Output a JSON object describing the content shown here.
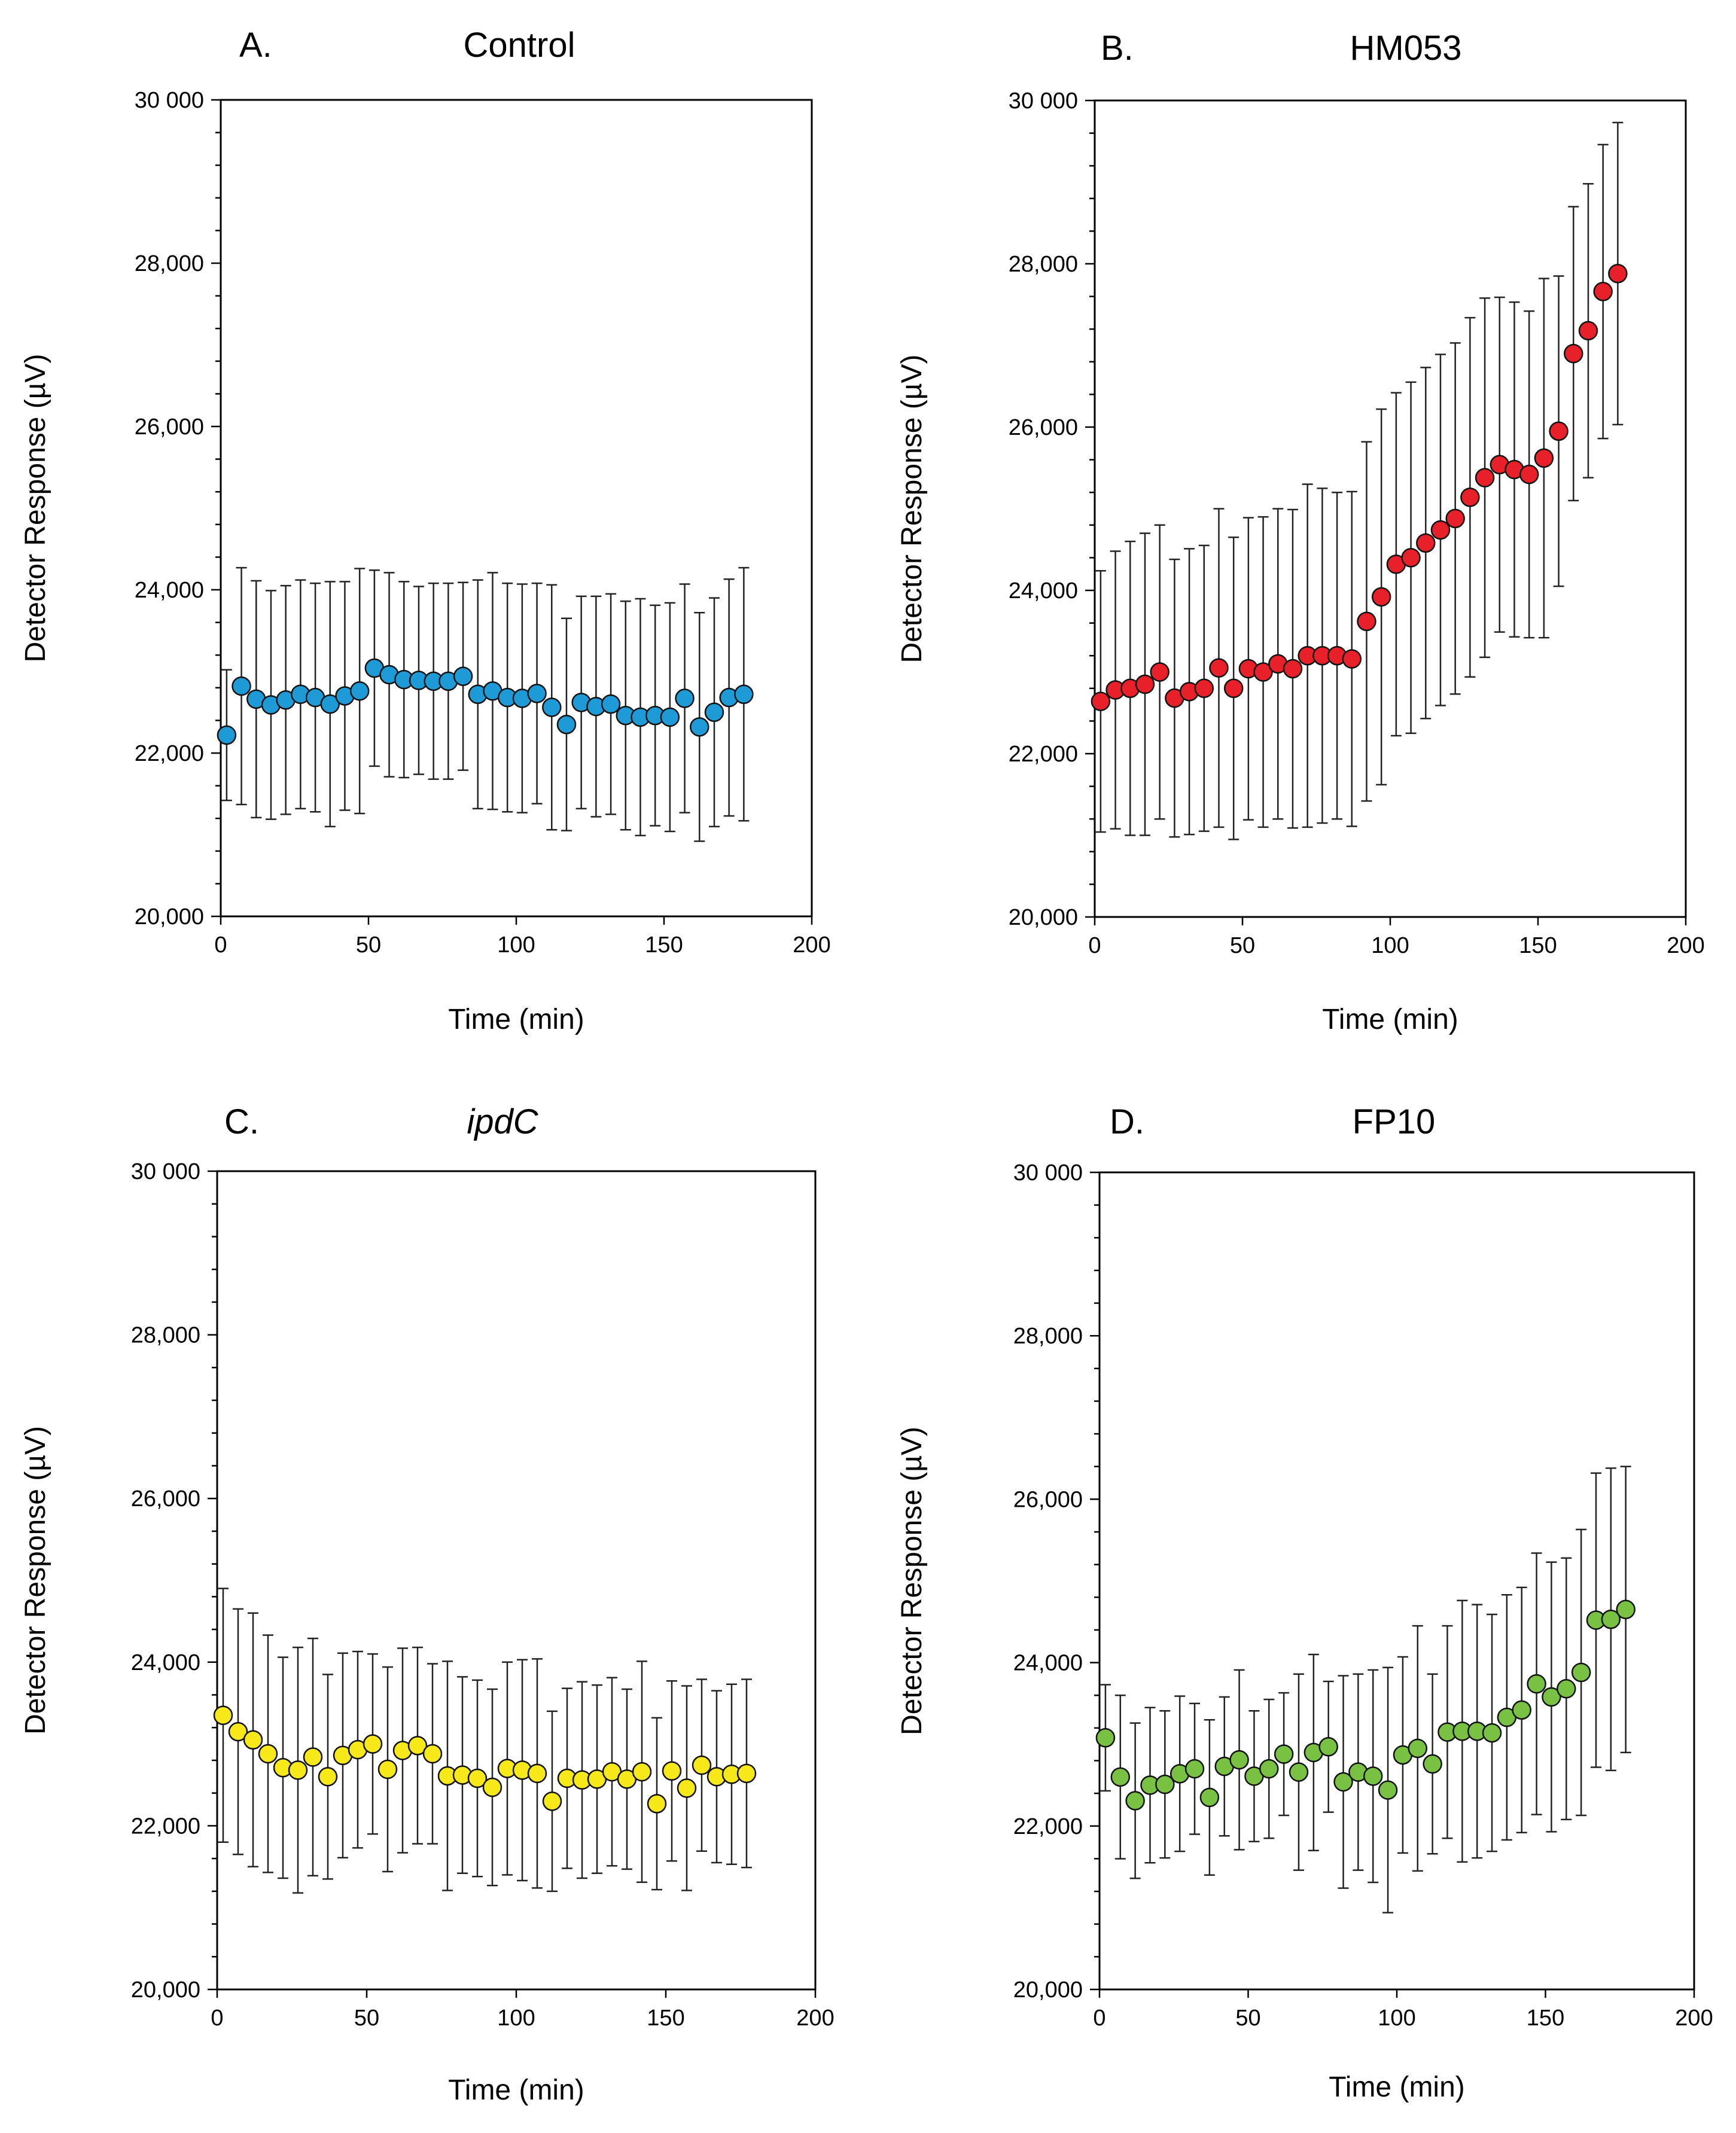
{
  "chart_data": [
    {
      "type": "scatter",
      "letter": "A.",
      "title": "Control",
      "title_italic": false,
      "xlabel": "Time (min)",
      "ylabel": "Detector Response (µV)",
      "xlim": [
        0,
        200
      ],
      "ylim": [
        20000,
        30000
      ],
      "xticks": [
        0,
        50,
        100,
        150,
        200
      ],
      "yticks": [
        20000,
        22000,
        24000,
        26000,
        28000,
        30000
      ],
      "ytick_labels": [
        "20,000",
        "22,000",
        "24,000",
        "26,000",
        "28,000",
        "30 000"
      ],
      "color": "#1e9bd7",
      "series": [
        {
          "name": "Control",
          "x": [
            2,
            7,
            12,
            17,
            22,
            27,
            32,
            37,
            42,
            47,
            52,
            57,
            62,
            67,
            72,
            77,
            82,
            87,
            92,
            97,
            102,
            107,
            112,
            117,
            122,
            127,
            132,
            137,
            142,
            147,
            152,
            157,
            162,
            167,
            172,
            177
          ],
          "y": [
            22220,
            22820,
            22660,
            22590,
            22650,
            22720,
            22680,
            22600,
            22700,
            22760,
            23040,
            22960,
            22900,
            22890,
            22880,
            22880,
            22940,
            22720,
            22760,
            22680,
            22670,
            22730,
            22560,
            22350,
            22620,
            22570,
            22600,
            22460,
            22440,
            22460,
            22440,
            22670,
            22320,
            22500,
            22680,
            22720
          ],
          "err": [
            800,
            1450,
            1450,
            1400,
            1400,
            1400,
            1400,
            1500,
            1400,
            1500,
            1200,
            1250,
            1200,
            1150,
            1200,
            1200,
            1150,
            1400,
            1450,
            1400,
            1400,
            1350,
            1500,
            1300,
            1300,
            1350,
            1350,
            1400,
            1450,
            1350,
            1400,
            1400,
            1400,
            1400,
            1450,
            1550
          ]
        }
      ]
    },
    {
      "type": "scatter",
      "letter": "B.",
      "title": "HM053",
      "title_italic": false,
      "xlabel": "Time (min)",
      "ylabel": "Detector Response (µV)",
      "xlim": [
        0,
        200
      ],
      "ylim": [
        20000,
        30000
      ],
      "xticks": [
        0,
        50,
        100,
        150,
        200
      ],
      "yticks": [
        20000,
        22000,
        24000,
        26000,
        28000,
        30000
      ],
      "ytick_labels": [
        "20,000",
        "22,000",
        "24,000",
        "26,000",
        "28,000",
        "30 000"
      ],
      "color": "#e8202a",
      "series": [
        {
          "name": "HM053",
          "x": [
            2,
            7,
            12,
            17,
            22,
            27,
            32,
            37,
            42,
            47,
            52,
            57,
            62,
            67,
            72,
            77,
            82,
            87,
            92,
            97,
            102,
            107,
            112,
            117,
            122,
            127,
            132,
            137,
            142,
            147,
            152,
            157,
            162,
            167,
            172,
            177
          ],
          "y": [
            22640,
            22780,
            22800,
            22850,
            23000,
            22680,
            22760,
            22800,
            23050,
            22800,
            23040,
            23000,
            23100,
            23040,
            23200,
            23200,
            23200,
            23160,
            23620,
            23920,
            24320,
            24400,
            24580,
            24740,
            24880,
            25140,
            25380,
            25540,
            25480,
            25420,
            25620,
            25950,
            26900,
            27180,
            27660,
            27880
          ],
          "err": [
            1600,
            1700,
            1800,
            1850,
            1800,
            1700,
            1750,
            1750,
            1950,
            1850,
            1850,
            1900,
            1900,
            1950,
            2100,
            2050,
            2000,
            2050,
            2200,
            2300,
            2100,
            2150,
            2150,
            2150,
            2150,
            2200,
            2200,
            2050,
            2050,
            2000,
            2200,
            1900,
            1800,
            1800,
            1800,
            1850
          ]
        }
      ]
    },
    {
      "type": "scatter",
      "letter": "C.",
      "title": "ipdC",
      "title_italic": true,
      "xlabel": "Time (min)",
      "ylabel": "Detector Response (µV)",
      "xlim": [
        0,
        200
      ],
      "ylim": [
        20000,
        30000
      ],
      "xticks": [
        0,
        50,
        100,
        150,
        200
      ],
      "yticks": [
        20000,
        22000,
        24000,
        26000,
        28000,
        30000
      ],
      "ytick_labels": [
        "20,000",
        "22,000",
        "24,000",
        "26,000",
        "28,000",
        "30 000"
      ],
      "color": "#f7e81a",
      "series": [
        {
          "name": "ipdC",
          "x": [
            2,
            7,
            12,
            17,
            22,
            27,
            32,
            37,
            42,
            47,
            52,
            57,
            62,
            67,
            72,
            77,
            82,
            87,
            92,
            97,
            102,
            107,
            112,
            117,
            122,
            127,
            132,
            137,
            142,
            147,
            152,
            157,
            162,
            167,
            172,
            177
          ],
          "y": [
            23350,
            23150,
            23050,
            22880,
            22710,
            22680,
            22840,
            22600,
            22860,
            22930,
            23000,
            22690,
            22920,
            22980,
            22880,
            22610,
            22620,
            22580,
            22470,
            22700,
            22680,
            22640,
            22300,
            22580,
            22560,
            22570,
            22660,
            22570,
            22660,
            22270,
            22670,
            22460,
            22740,
            22600,
            22630,
            22640
          ],
          "err": [
            1550,
            1500,
            1550,
            1450,
            1350,
            1500,
            1450,
            1250,
            1250,
            1200,
            1100,
            1250,
            1250,
            1200,
            1100,
            1400,
            1200,
            1200,
            1200,
            1300,
            1350,
            1400,
            1100,
            1100,
            1200,
            1150,
            1150,
            1100,
            1350,
            1050,
            1100,
            1250,
            1050,
            1050,
            1100,
            1150
          ]
        }
      ]
    },
    {
      "type": "scatter",
      "letter": "D.",
      "title": "FP10",
      "title_italic": false,
      "xlabel": "Time (min)",
      "ylabel": "Detector Response (µV)",
      "xlim": [
        0,
        200
      ],
      "ylim": [
        20000,
        30000
      ],
      "xticks": [
        0,
        50,
        100,
        150,
        200
      ],
      "yticks": [
        20000,
        22000,
        24000,
        26000,
        28000,
        30000
      ],
      "ytick_labels": [
        "20,000",
        "22,000",
        "24,000",
        "26,000",
        "28,000",
        "30 000"
      ],
      "color": "#79c142",
      "series": [
        {
          "name": "FP10",
          "x": [
            2,
            7,
            12,
            17,
            22,
            27,
            32,
            37,
            42,
            47,
            52,
            57,
            62,
            67,
            72,
            77,
            82,
            87,
            92,
            97,
            102,
            107,
            112,
            117,
            122,
            127,
            132,
            137,
            142,
            147,
            152,
            157,
            162,
            167,
            172,
            177
          ],
          "y": [
            23080,
            22600,
            22310,
            22500,
            22510,
            22640,
            22700,
            22350,
            22730,
            22810,
            22610,
            22700,
            22880,
            22660,
            22900,
            22970,
            22540,
            22660,
            22610,
            22440,
            22870,
            22950,
            22760,
            23150,
            23160,
            23160,
            23140,
            23330,
            23420,
            23740,
            23580,
            23680,
            23880,
            24520,
            24530,
            24650
          ],
          "err": [
            650,
            1000,
            950,
            950,
            900,
            950,
            800,
            950,
            850,
            1100,
            800,
            850,
            750,
            1200,
            1200,
            800,
            1300,
            1200,
            1300,
            1500,
            1200,
            1500,
            1100,
            1300,
            1600,
            1550,
            1450,
            1500,
            1500,
            1600,
            1650,
            1600,
            1750,
            1800,
            1850,
            1750
          ]
        }
      ]
    }
  ]
}
